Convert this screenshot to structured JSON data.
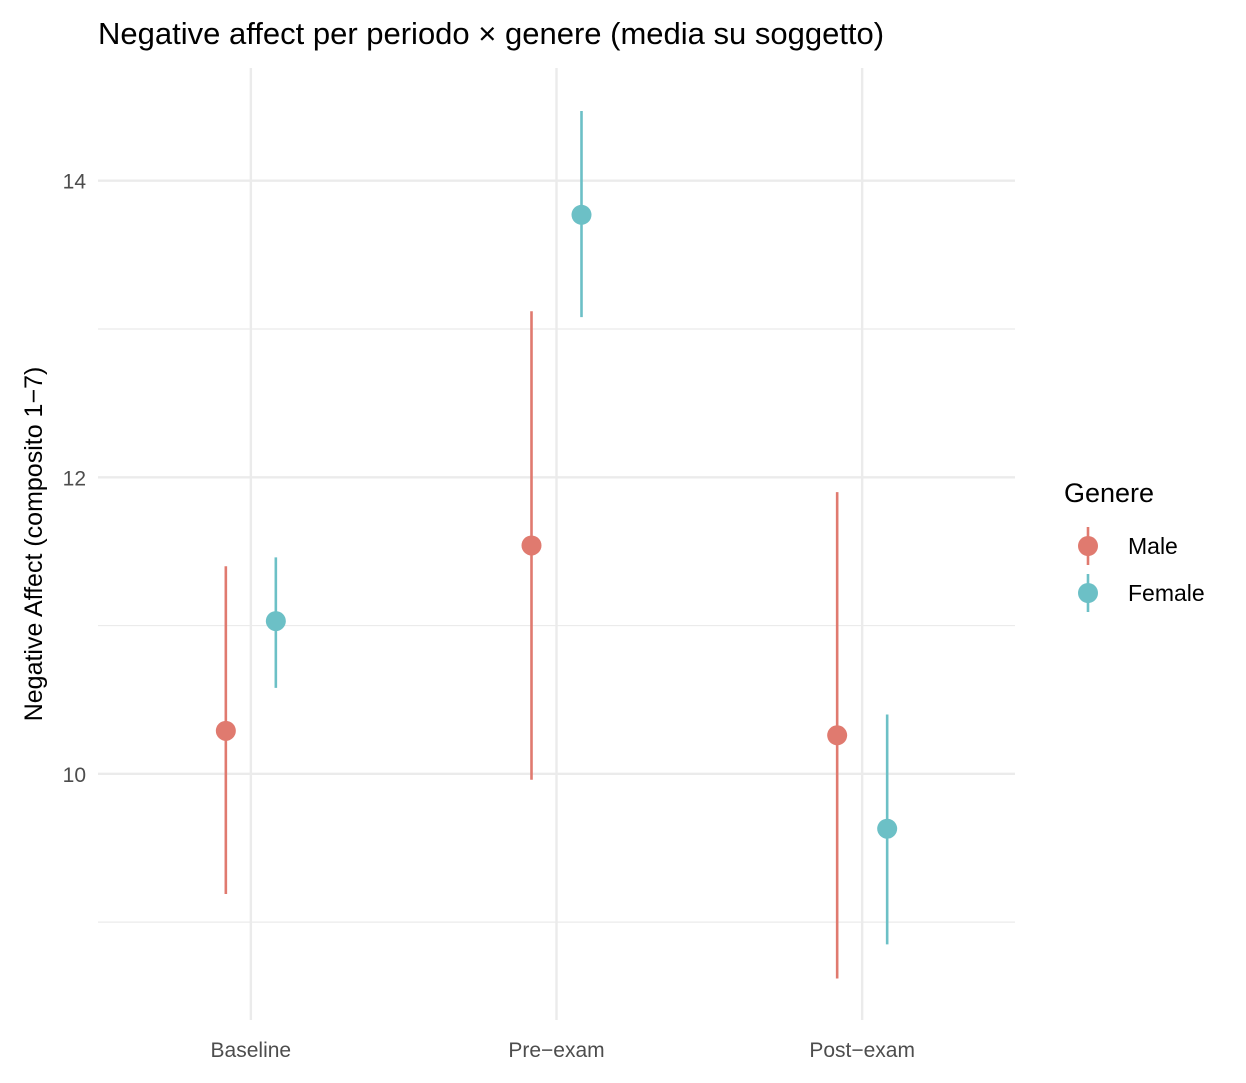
{
  "chart_data": {
    "type": "scatter",
    "title": "Negative affect per periodo × genere (media su soggetto)",
    "xlabel": "",
    "ylabel": "Negative Affect (composito 1−7)",
    "categories": [
      "Baseline",
      "Pre−exam",
      "Post−exam"
    ],
    "ylim": [
      8.34,
      14.76
    ],
    "yticks": [
      10,
      12,
      14
    ],
    "ytick_labels": [
      "10",
      "12",
      "14"
    ],
    "grid": true,
    "legend": {
      "title": "Genere",
      "placement": "right"
    },
    "series": [
      {
        "name": "Male",
        "color": "#E07A6F",
        "values": [
          10.29,
          11.54,
          10.26
        ],
        "lower": [
          9.19,
          9.96,
          8.62
        ],
        "upper": [
          11.4,
          13.12,
          11.9
        ]
      },
      {
        "name": "Female",
        "color": "#6CC0C6",
        "values": [
          11.03,
          13.77,
          9.63
        ],
        "lower": [
          10.58,
          13.08,
          8.85
        ],
        "upper": [
          11.46,
          14.47,
          10.4
        ]
      }
    ]
  }
}
